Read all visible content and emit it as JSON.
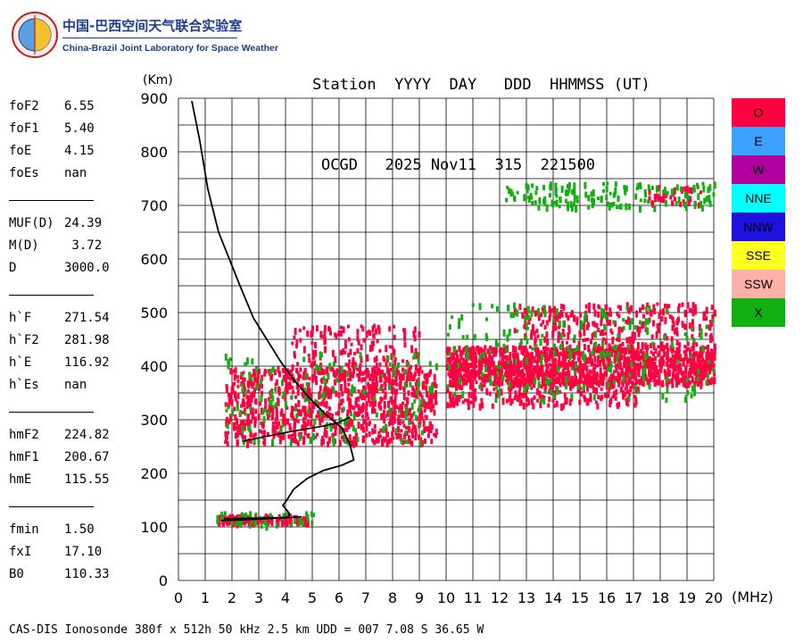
{
  "logo": {
    "cn": "中国-巴西空间天气联合实验室",
    "en": "China-Brazil Joint Laboratory for Space Weather"
  },
  "header": {
    "line1": "Station  YYYY  DAY   DDD  HHMMSS (UT)",
    "line2": "OCGD   2025 Nov11  315  221500"
  },
  "params": [
    [
      {
        "name": "foF2",
        "value": "6.55"
      },
      {
        "name": "foF1",
        "value": "5.40"
      },
      {
        "name": "foE",
        "value": "4.15"
      },
      {
        "name": "foEs",
        "value": "nan"
      }
    ],
    [
      {
        "name": "MUF(D)",
        "value": "24.39"
      },
      {
        "name": "M(D)",
        "value": " 3.72"
      },
      {
        "name": "D",
        "value": "3000.0"
      }
    ],
    [
      {
        "name": "h`F",
        "value": "271.54"
      },
      {
        "name": "h`F2",
        "value": "281.98"
      },
      {
        "name": "h`E",
        "value": "116.92"
      },
      {
        "name": "h`Es",
        "value": "nan"
      }
    ],
    [
      {
        "name": "hmF2",
        "value": "224.82"
      },
      {
        "name": "hmF1",
        "value": "200.67"
      },
      {
        "name": "hmE",
        "value": "115.55"
      }
    ],
    [
      {
        "name": "fmin",
        "value": "1.50"
      },
      {
        "name": "fxI",
        "value": "17.10"
      },
      {
        "name": "B0",
        "value": "110.33"
      }
    ]
  ],
  "legend": [
    {
      "label": "O",
      "color": "#ff0040"
    },
    {
      "label": "E",
      "color": "#3ca0ff"
    },
    {
      "label": "W",
      "color": "#b000a0"
    },
    {
      "label": "NNE",
      "color": "#00ffff"
    },
    {
      "label": "NNW",
      "color": "#2010e0"
    },
    {
      "label": "SSE",
      "color": "#ffff20"
    },
    {
      "label": "SSW",
      "color": "#ffb0a8"
    },
    {
      "label": "X",
      "color": "#10b010"
    }
  ],
  "footer": "CAS-DIS Ionosonde 380f x 512h 50 kHz 2.5 km UDD = 007 7.08 S 36.65 W",
  "chart_data": {
    "type": "scatter",
    "xlabel": "(MHz)",
    "ylabel": "(Km)",
    "xlim": [
      0,
      20
    ],
    "ylim": [
      0,
      900
    ],
    "x_ticks": [
      0,
      1,
      2,
      3,
      4,
      5,
      6,
      7,
      8,
      9,
      10,
      11,
      12,
      13,
      14,
      15,
      16,
      17,
      18,
      19,
      20
    ],
    "y_ticks": [
      0,
      100,
      200,
      300,
      400,
      500,
      600,
      700,
      800,
      900
    ],
    "grid": true,
    "profile_curve": [
      [
        0.5,
        895
      ],
      [
        0.8,
        820
      ],
      [
        1.1,
        730
      ],
      [
        1.5,
        650
      ],
      [
        1.9,
        600
      ],
      [
        2.3,
        550
      ],
      [
        2.8,
        490
      ],
      [
        3.3,
        450
      ],
      [
        3.8,
        410
      ],
      [
        4.3,
        375
      ],
      [
        4.9,
        340
      ],
      [
        5.5,
        310
      ],
      [
        6.1,
        285
      ],
      [
        6.4,
        255
      ],
      [
        6.55,
        225
      ],
      [
        6.1,
        215
      ],
      [
        5.4,
        205
      ],
      [
        4.8,
        190
      ],
      [
        4.3,
        170
      ],
      [
        4.05,
        150
      ],
      [
        3.9,
        140
      ],
      [
        4.15,
        125
      ],
      [
        4.1,
        118
      ],
      [
        3.8,
        117
      ],
      [
        2.5,
        116
      ],
      [
        1.7,
        115
      ]
    ],
    "o_trace_F": [
      [
        2.4,
        260
      ],
      [
        3.0,
        266
      ],
      [
        3.6,
        272
      ],
      [
        4.2,
        278
      ],
      [
        4.8,
        283
      ],
      [
        5.4,
        288
      ],
      [
        6.0,
        295
      ],
      [
        6.4,
        305
      ]
    ],
    "o_trace_E": [
      [
        1.6,
        112
      ],
      [
        2.4,
        113
      ],
      [
        3.2,
        115
      ],
      [
        4.0,
        117
      ],
      [
        4.6,
        119
      ]
    ],
    "clusters": [
      {
        "mode": "O",
        "x": [
          1.7,
          9.6
        ],
        "y": [
          260,
          400
        ],
        "density": 900
      },
      {
        "mode": "O",
        "x": [
          4.2,
          9.0
        ],
        "y": [
          380,
          480
        ],
        "density": 180
      },
      {
        "mode": "O",
        "x": [
          10.0,
          20.0
        ],
        "y": [
          370,
          440
        ],
        "density": 1300
      },
      {
        "mode": "O",
        "x": [
          12.5,
          20.0
        ],
        "y": [
          440,
          520
        ],
        "density": 300
      },
      {
        "mode": "O",
        "x": [
          10.0,
          17.2
        ],
        "y": [
          330,
          370
        ],
        "density": 200
      },
      {
        "mode": "O",
        "x": [
          1.4,
          4.8
        ],
        "y": [
          110,
          125
        ],
        "density": 150
      },
      {
        "mode": "O",
        "x": [
          17.5,
          19.5
        ],
        "y": [
          705,
          740
        ],
        "density": 40
      },
      {
        "mode": "X",
        "x": [
          1.7,
          9.6
        ],
        "y": [
          260,
          430
        ],
        "density": 160
      },
      {
        "mode": "X",
        "x": [
          10.0,
          20.0
        ],
        "y": [
          340,
          520
        ],
        "density": 220
      },
      {
        "mode": "X",
        "x": [
          12.2,
          20.0
        ],
        "y": [
          700,
          745
        ],
        "density": 160
      },
      {
        "mode": "X",
        "x": [
          1.4,
          5.1
        ],
        "y": [
          105,
          130
        ],
        "density": 40
      }
    ]
  }
}
